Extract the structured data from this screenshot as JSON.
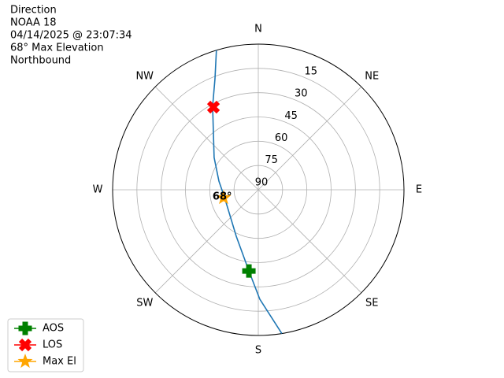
{
  "chart_data": {
    "type": "polar",
    "title_lines": [
      "Direction",
      "NOAA 18",
      "04/14/2025 @ 23:07:34",
      "68° Max Elevation",
      "Northbound"
    ],
    "rlim": [
      90,
      0
    ],
    "rticks": [
      90,
      75,
      60,
      45,
      30,
      15
    ],
    "thetaticks": [
      {
        "value": 0,
        "label": "N"
      },
      {
        "value": 45,
        "label": "NE"
      },
      {
        "value": 90,
        "label": "E"
      },
      {
        "value": 135,
        "label": "SE"
      },
      {
        "value": 180,
        "label": "S"
      },
      {
        "value": 225,
        "label": "SW"
      },
      {
        "value": 270,
        "label": "W"
      },
      {
        "value": 315,
        "label": "NW"
      }
    ],
    "grid": true,
    "legend": "lower left",
    "track": {
      "color": "#1f77b4",
      "azimuth": [
        343.3,
        338.7,
        331.3,
        306.2,
        282.4,
        258.2,
        205.4,
        186.6,
        179.2,
        170.7
      ],
      "elevation": [
        0,
        16.4,
        31.2,
        56.2,
        65.1,
        68.6,
        58.2,
        39.5,
        22.4,
        0
      ]
    },
    "markers": [
      {
        "name": "AOS",
        "color": "green",
        "shape": "plus",
        "azimuth": 186.6,
        "elevation": 39.5
      },
      {
        "name": "LOS",
        "color": "red",
        "shape": "x",
        "azimuth": 331.5,
        "elevation": 31.9
      },
      {
        "name": "Max El",
        "color": "orange",
        "shape": "star",
        "azimuth": 257,
        "elevation": 68
      }
    ],
    "annotation": "68°"
  }
}
